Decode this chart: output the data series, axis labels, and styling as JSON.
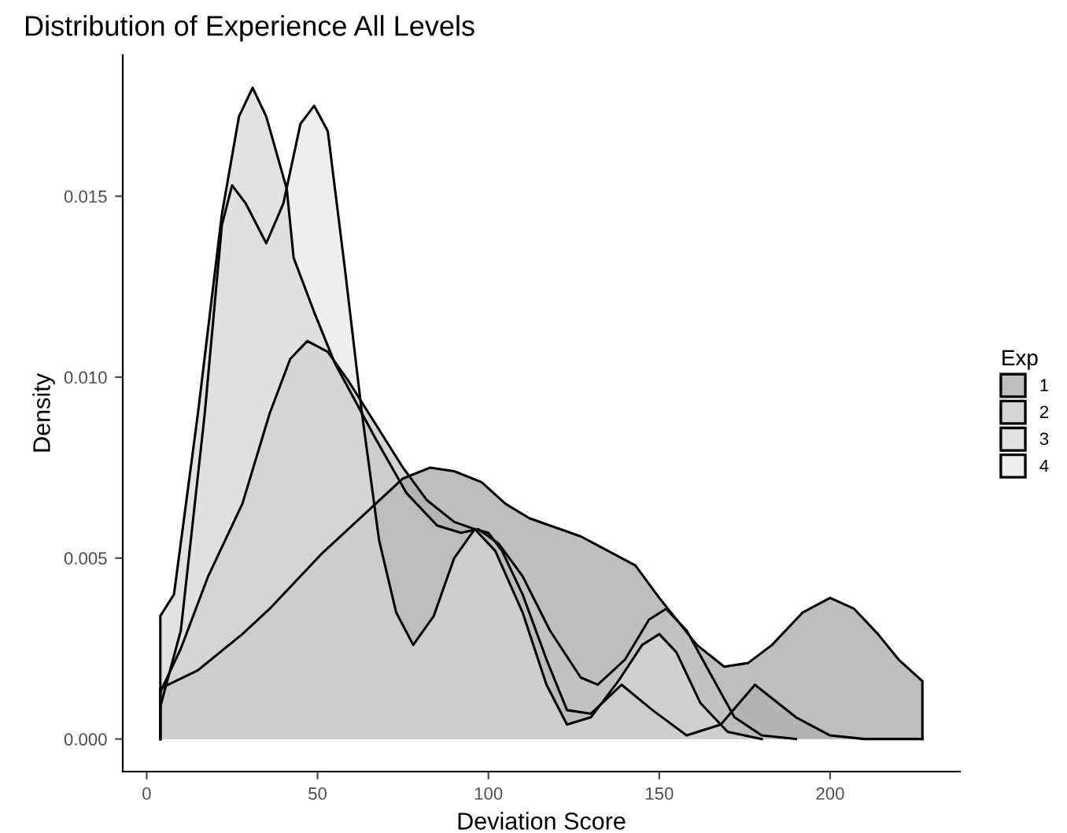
{
  "chart_data": {
    "type": "area",
    "title": "Distribution of Experience All Levels",
    "xlabel": "Deviation Score",
    "ylabel": "Density",
    "legend_title": "Exp",
    "legend": "right",
    "grid": false,
    "xlim": [
      -7,
      238
    ],
    "ylim": [
      -0.0009,
      0.0189
    ],
    "xticks": [
      0,
      50,
      100,
      150,
      200
    ],
    "yticks": [
      {
        "value": 0,
        "label": "0.000"
      },
      {
        "value": 0.005,
        "label": "0.005"
      },
      {
        "value": 0.01,
        "label": "0.010"
      },
      {
        "value": 0.015,
        "label": "0.015"
      }
    ],
    "series": [
      {
        "name": "1",
        "color": "#bebebe",
        "x": [
          4,
          15,
          28,
          36,
          51,
          67,
          75,
          83,
          90,
          98,
          105,
          112,
          127,
          143,
          150,
          161,
          169,
          176,
          183,
          192,
          200,
          207,
          214,
          220,
          227
        ],
        "values": [
          0.0014,
          0.0019,
          0.0029,
          0.0036,
          0.0051,
          0.0065,
          0.0072,
          0.0075,
          0.0074,
          0.0071,
          0.0065,
          0.0061,
          0.0056,
          0.0048,
          0.0039,
          0.0026,
          0.002,
          0.0021,
          0.0026,
          0.0035,
          0.0039,
          0.0036,
          0.0029,
          0.0022,
          0.0016
        ]
      },
      {
        "name": "2",
        "color": "#d4d4d4",
        "x": [
          4,
          10,
          18,
          28,
          36,
          42,
          47,
          53,
          59,
          67,
          75,
          82,
          90,
          96,
          100,
          104,
          110,
          117,
          123,
          130,
          139,
          148,
          158,
          168,
          178,
          190,
          200,
          210,
          227
        ],
        "values": [
          0.0013,
          0.0025,
          0.0045,
          0.0065,
          0.009,
          0.0105,
          0.011,
          0.0107,
          0.0099,
          0.0087,
          0.0075,
          0.0066,
          0.006,
          0.0058,
          0.0057,
          0.0052,
          0.004,
          0.0022,
          0.0008,
          0.0007,
          0.0015,
          0.0008,
          0.0001,
          0.0004,
          0.0015,
          0.0006,
          0.0001,
          0,
          0
        ]
      },
      {
        "name": "3",
        "color": "#e2e2e2",
        "x": [
          4,
          8,
          15,
          22,
          27,
          31,
          35,
          41,
          43,
          49,
          55,
          67,
          76,
          85,
          92,
          97,
          103,
          110,
          118,
          127,
          132,
          140,
          147,
          152,
          158,
          165,
          172,
          180,
          190
        ],
        "values": [
          0.0034,
          0.004,
          0.009,
          0.0145,
          0.0172,
          0.018,
          0.0172,
          0.0152,
          0.0133,
          0.0118,
          0.0104,
          0.0083,
          0.0068,
          0.0059,
          0.0057,
          0.0058,
          0.0054,
          0.0045,
          0.003,
          0.0017,
          0.0015,
          0.0022,
          0.0033,
          0.0036,
          0.003,
          0.0018,
          0.0006,
          0.0001,
          0
        ]
      },
      {
        "name": "4",
        "color": "#eeeeee",
        "x": [
          4,
          10,
          17,
          22,
          25,
          29,
          35,
          40,
          45,
          49,
          53,
          58,
          63,
          68,
          73,
          78,
          84,
          90,
          96,
          102,
          110,
          117,
          123,
          130,
          138,
          145,
          150,
          155,
          162,
          170,
          180
        ],
        "values": [
          0.0009,
          0.003,
          0.009,
          0.0142,
          0.0153,
          0.0148,
          0.0137,
          0.0148,
          0.017,
          0.0175,
          0.0168,
          0.013,
          0.009,
          0.0055,
          0.0035,
          0.0026,
          0.0034,
          0.005,
          0.0058,
          0.0052,
          0.0035,
          0.0015,
          0.0004,
          0.0006,
          0.0016,
          0.0026,
          0.0029,
          0.0024,
          0.001,
          0.0002,
          0
        ]
      }
    ]
  }
}
